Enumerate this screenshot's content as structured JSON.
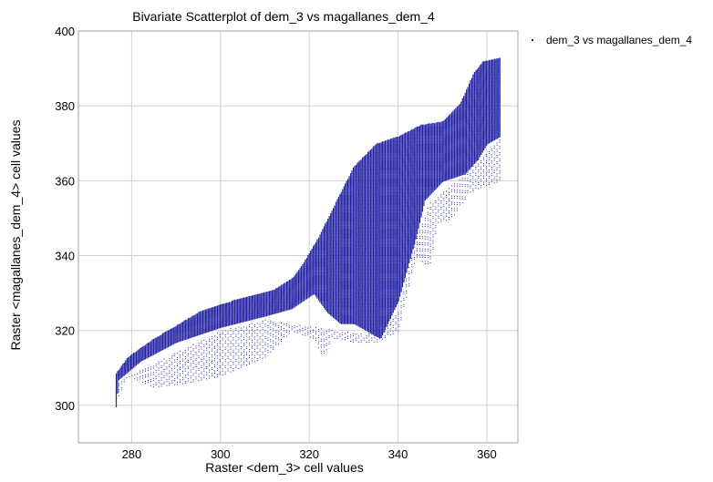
{
  "chart_data": {
    "type": "scatter",
    "title": "Bivariate Scatterplot of dem_3 vs magallanes_dem_4",
    "xlabel": "Raster <dem_3> cell values",
    "ylabel": "Raster <magallanes_dem_4> cell values",
    "xlim": [
      268,
      367
    ],
    "ylim": [
      290,
      400
    ],
    "xticks": [
      280,
      300,
      320,
      340,
      360
    ],
    "yticks": [
      300,
      320,
      340,
      360,
      380,
      400
    ],
    "xtick_labels": [
      "280",
      "300",
      "320",
      "340",
      "360"
    ],
    "ytick_labels": [
      "300",
      "320",
      "340",
      "360",
      "380",
      "400"
    ],
    "grid": true,
    "legend_position": "top-right",
    "marker_color": "#1f1fa3",
    "series": [
      {
        "name": "dem_3 vs magallanes_dem_4",
        "dense_upper_boundary": [
          [
            276,
            308
          ],
          [
            279,
            313
          ],
          [
            285,
            318
          ],
          [
            295,
            325
          ],
          [
            305,
            329
          ],
          [
            312,
            331
          ],
          [
            316,
            334
          ],
          [
            318,
            337
          ],
          [
            322,
            345
          ],
          [
            327,
            357
          ],
          [
            330,
            364
          ],
          [
            335,
            370
          ],
          [
            340,
            372
          ],
          [
            345,
            375
          ],
          [
            350,
            376
          ],
          [
            354,
            381
          ],
          [
            357,
            389
          ],
          [
            359,
            392
          ],
          [
            363,
            393
          ]
        ],
        "dense_lower_boundary": [
          [
            276,
            295
          ],
          [
            277,
            307
          ],
          [
            282,
            312
          ],
          [
            290,
            317
          ],
          [
            300,
            321
          ],
          [
            310,
            324
          ],
          [
            316,
            326
          ],
          [
            321,
            330
          ],
          [
            324,
            325
          ],
          [
            327,
            322
          ],
          [
            330,
            322
          ],
          [
            333,
            320
          ],
          [
            336,
            318
          ],
          [
            340,
            328
          ],
          [
            344,
            345
          ],
          [
            346,
            355
          ],
          [
            350,
            360
          ],
          [
            355,
            362
          ],
          [
            358,
            366
          ],
          [
            360,
            370
          ],
          [
            363,
            372
          ]
        ],
        "sparse_upper_boundary": [
          [
            276,
            306
          ],
          [
            300,
            320
          ],
          [
            310,
            323
          ],
          [
            321,
            321
          ],
          [
            333,
            319
          ],
          [
            340,
            325
          ],
          [
            344,
            345
          ],
          [
            347,
            354
          ],
          [
            355,
            362
          ],
          [
            363,
            372
          ]
        ],
        "sparse_lower_boundary": [
          [
            276,
            300
          ],
          [
            279,
            308
          ],
          [
            285,
            305
          ],
          [
            292,
            306
          ],
          [
            300,
            308
          ],
          [
            310,
            313
          ],
          [
            316,
            320
          ],
          [
            321,
            318
          ],
          [
            323,
            313
          ],
          [
            325,
            318
          ],
          [
            327,
            318
          ],
          [
            330,
            317
          ],
          [
            335,
            317
          ],
          [
            340,
            320
          ],
          [
            344,
            340
          ],
          [
            347,
            337
          ],
          [
            349,
            349
          ],
          [
            352,
            350
          ],
          [
            356,
            357
          ],
          [
            360,
            359
          ],
          [
            363,
            360
          ]
        ]
      }
    ]
  }
}
